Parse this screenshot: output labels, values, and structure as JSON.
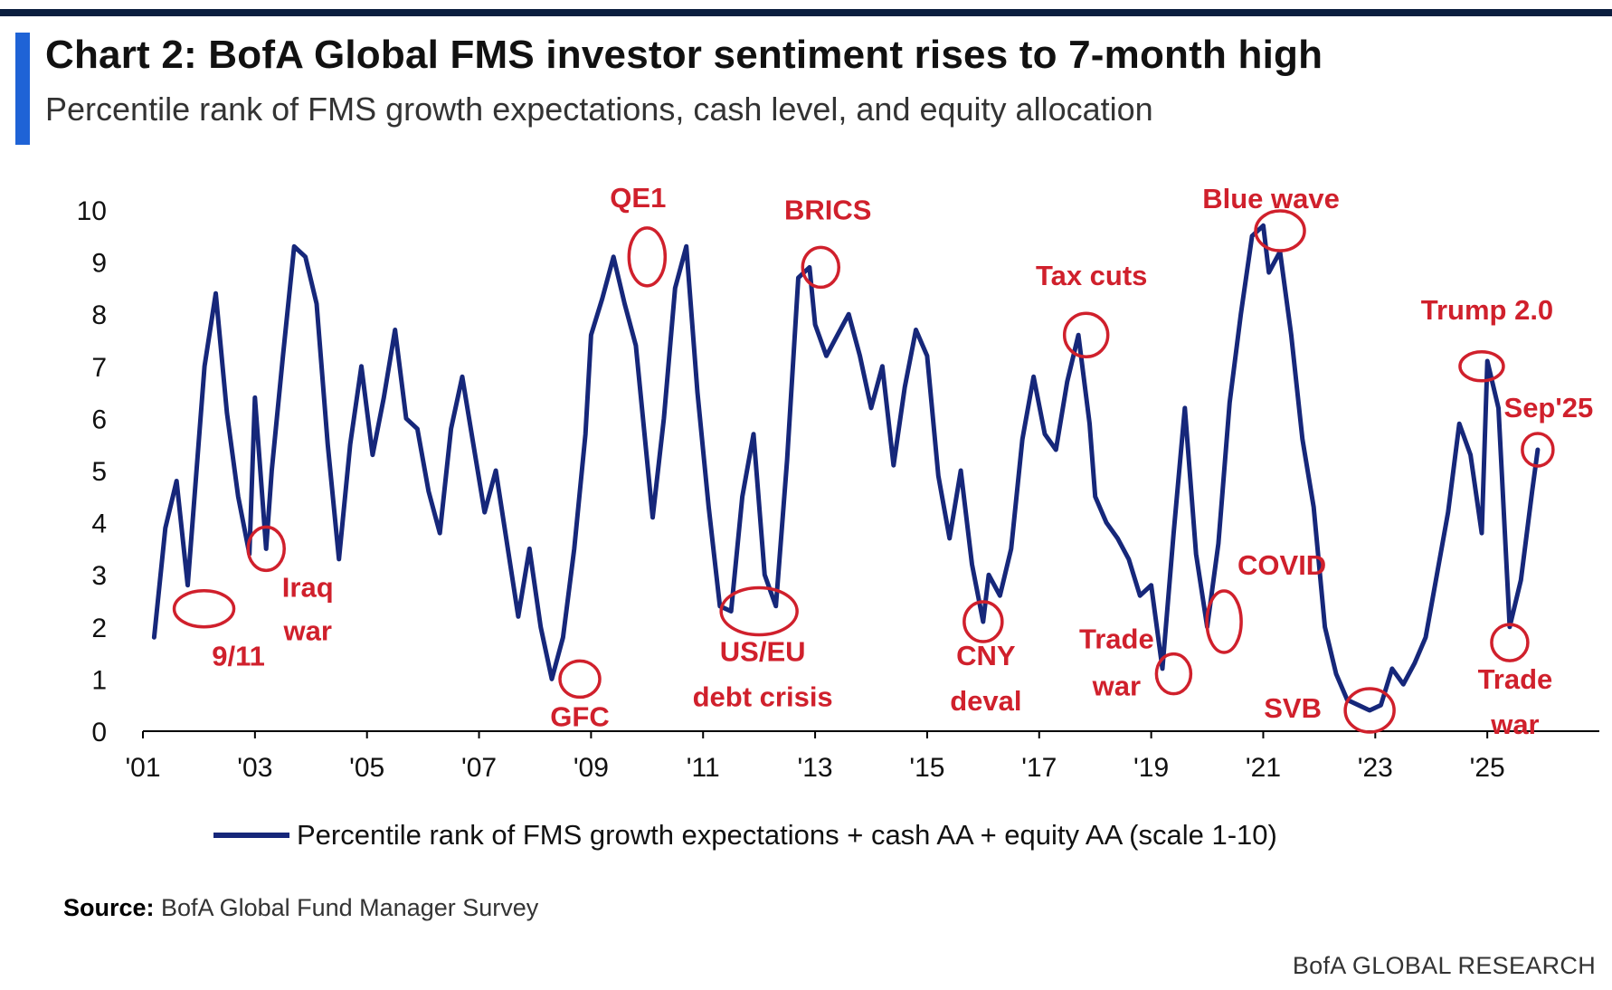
{
  "header": {
    "title": "Chart 2: BofA Global FMS investor sentiment rises to 7-month high",
    "subtitle": "Percentile rank of FMS growth expectations, cash level, and equity allocation"
  },
  "footer": {
    "source_label": "Source:",
    "source_text": " BofA Global Fund Manager Survey",
    "brand": "BofA GLOBAL RESEARCH"
  },
  "colors": {
    "line": "#16277a",
    "annotation": "#d0202c",
    "accent": "#1f63d6"
  },
  "chart_data": {
    "type": "line",
    "title": "Chart 2: BofA Global FMS investor sentiment rises to 7-month high",
    "subtitle": "Percentile rank of FMS growth expectations, cash level, and equity allocation",
    "xlabel": "",
    "ylabel": "",
    "xlim": [
      2001,
      2027
    ],
    "ylim": [
      0,
      10
    ],
    "x_ticks": [
      "'01",
      "'03",
      "'05",
      "'07",
      "'09",
      "'11",
      "'13",
      "'15",
      "'17",
      "'19",
      "'21",
      "'23",
      "'25"
    ],
    "y_ticks": [
      "0",
      "1",
      "2",
      "3",
      "4",
      "5",
      "6",
      "7",
      "8",
      "9",
      "10"
    ],
    "grid": false,
    "legend_position": "bottom",
    "series": [
      {
        "name": "Percentile rank of FMS growth expectations + cash AA + equity AA (scale 1-10)",
        "x": [
          2001.2,
          2001.4,
          2001.6,
          2001.8,
          2001.9,
          2002.1,
          2002.3,
          2002.5,
          2002.7,
          2002.9,
          2003.0,
          2003.2,
          2003.3,
          2003.5,
          2003.7,
          2003.9,
          2004.1,
          2004.3,
          2004.5,
          2004.7,
          2004.9,
          2005.1,
          2005.3,
          2005.5,
          2005.7,
          2005.9,
          2006.1,
          2006.3,
          2006.5,
          2006.7,
          2006.9,
          2007.1,
          2007.3,
          2007.5,
          2007.7,
          2007.9,
          2008.1,
          2008.3,
          2008.5,
          2008.7,
          2008.9,
          2009.0,
          2009.2,
          2009.4,
          2009.6,
          2009.8,
          2010.0,
          2010.1,
          2010.3,
          2010.5,
          2010.7,
          2010.9,
          2011.1,
          2011.3,
          2011.5,
          2011.7,
          2011.9,
          2012.1,
          2012.3,
          2012.5,
          2012.7,
          2012.9,
          2013.0,
          2013.2,
          2013.4,
          2013.6,
          2013.8,
          2014.0,
          2014.2,
          2014.4,
          2014.6,
          2014.8,
          2015.0,
          2015.2,
          2015.4,
          2015.6,
          2015.8,
          2016.0,
          2016.1,
          2016.3,
          2016.5,
          2016.7,
          2016.9,
          2017.1,
          2017.3,
          2017.5,
          2017.7,
          2017.9,
          2018.0,
          2018.2,
          2018.4,
          2018.6,
          2018.8,
          2019.0,
          2019.2,
          2019.4,
          2019.6,
          2019.8,
          2020.0,
          2020.2,
          2020.4,
          2020.6,
          2020.8,
          2021.0,
          2021.1,
          2021.3,
          2021.5,
          2021.7,
          2021.9,
          2022.1,
          2022.3,
          2022.5,
          2022.7,
          2022.9,
          2023.1,
          2023.3,
          2023.5,
          2023.7,
          2023.9,
          2024.1,
          2024.3,
          2024.5,
          2024.7,
          2024.9,
          2025.0,
          2025.2,
          2025.4,
          2025.6,
          2025.8,
          2025.9
        ],
        "y": [
          1.8,
          3.9,
          4.8,
          2.8,
          4.2,
          7.0,
          8.4,
          6.1,
          4.5,
          3.4,
          6.4,
          3.5,
          5.0,
          7.2,
          9.3,
          9.1,
          8.2,
          5.5,
          3.3,
          5.5,
          7.0,
          5.3,
          6.4,
          7.7,
          6.0,
          5.8,
          4.6,
          3.8,
          5.8,
          6.8,
          5.5,
          4.2,
          5.0,
          3.6,
          2.2,
          3.5,
          2.0,
          1.0,
          1.8,
          3.5,
          5.7,
          7.6,
          8.3,
          9.1,
          8.2,
          7.4,
          5.2,
          4.1,
          6.0,
          8.5,
          9.3,
          6.5,
          4.3,
          2.4,
          2.3,
          4.5,
          5.7,
          3.0,
          2.4,
          5.2,
          8.7,
          8.9,
          7.8,
          7.2,
          7.6,
          8.0,
          7.2,
          6.2,
          7.0,
          5.1,
          6.6,
          7.7,
          7.2,
          4.9,
          3.7,
          5.0,
          3.2,
          2.1,
          3.0,
          2.6,
          3.5,
          5.6,
          6.8,
          5.7,
          5.4,
          6.7,
          7.6,
          5.9,
          4.5,
          4.0,
          3.7,
          3.3,
          2.6,
          2.8,
          1.2,
          3.8,
          6.2,
          3.4,
          2.0,
          3.6,
          6.3,
          8.0,
          9.5,
          9.7,
          8.8,
          9.2,
          7.6,
          5.6,
          4.3,
          2.0,
          1.1,
          0.6,
          0.5,
          0.4,
          0.5,
          1.2,
          0.9,
          1.3,
          1.8,
          3.0,
          4.2,
          5.9,
          5.3,
          3.8,
          7.1,
          6.2,
          2.0,
          2.9,
          4.6,
          5.4
        ]
      }
    ],
    "annotations": [
      {
        "label": [
          "9/11"
        ],
        "x": 2001.8,
        "y": 2.8
      },
      {
        "label": [
          "Iraq",
          "war"
        ],
        "x": 2003.2,
        "y": 3.5
      },
      {
        "label": [
          "GFC"
        ],
        "x": 2008.8,
        "y": 1.0
      },
      {
        "label": [
          "QE1"
        ],
        "x": 2010.0,
        "y": 9.1
      },
      {
        "label": [
          "US/EU",
          "debt crisis"
        ],
        "x": 2012.0,
        "y": 2.3
      },
      {
        "label": [
          "BRICS"
        ],
        "x": 2013.1,
        "y": 8.9
      },
      {
        "label": [
          "CNY",
          "deval"
        ],
        "x": 2016.0,
        "y": 2.1
      },
      {
        "label": [
          "Tax cuts"
        ],
        "x": 2018.0,
        "y": 7.6
      },
      {
        "label": [
          "Trade",
          "war"
        ],
        "x": 2019.4,
        "y": 1.1
      },
      {
        "label": [
          "COVID"
        ],
        "x": 2020.3,
        "y": 2.1
      },
      {
        "label": [
          "Blue wave"
        ],
        "x": 2021.3,
        "y": 9.6
      },
      {
        "label": [
          "SVB"
        ],
        "x": 2022.9,
        "y": 0.4
      },
      {
        "label": [
          "Trump 2.0"
        ],
        "x": 2024.9,
        "y": 7.0
      },
      {
        "label": [
          "Trade",
          "war"
        ],
        "x": 2025.4,
        "y": 1.7
      },
      {
        "label": [
          "Sep'25"
        ],
        "x": 2025.9,
        "y": 5.4
      }
    ]
  }
}
